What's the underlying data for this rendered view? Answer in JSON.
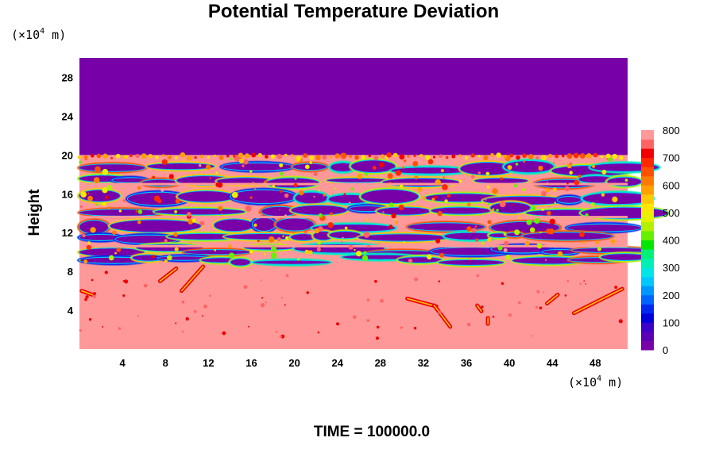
{
  "chart_data": {
    "type": "heatmap",
    "title": "Potential Temperature Deviation",
    "ylabel": "Height",
    "xlabel": "",
    "x_unit": {
      "prefix": "(×10",
      "exponent": "4",
      "suffix": " m)"
    },
    "y_unit": {
      "prefix": "(×10",
      "exponent": "4",
      "suffix": " m)"
    },
    "xlim": [
      0,
      51
    ],
    "ylim": [
      0,
      30
    ],
    "x_ticks": [
      4,
      8,
      12,
      16,
      20,
      24,
      28,
      32,
      36,
      40,
      44,
      48
    ],
    "x_tick_labels": [
      "4",
      "8",
      "12",
      "16",
      "20",
      "24",
      "28",
      "32",
      "36",
      "40",
      "44",
      "48"
    ],
    "y_ticks": [
      4,
      8,
      12,
      16,
      20,
      24,
      28
    ],
    "y_tick_labels": [
      "4",
      "8",
      "12",
      "16",
      "20",
      "24",
      "28"
    ],
    "colorbar": {
      "min": 0,
      "max": 800,
      "ticks": [
        0,
        100,
        200,
        300,
        400,
        500,
        600,
        700,
        800
      ],
      "tick_labels": [
        "0",
        "100",
        "200",
        "300",
        "400",
        "500",
        "600",
        "700",
        "800"
      ],
      "colors": [
        "#7800a8",
        "#5a00b4",
        "#3c00c8",
        "#0000dc",
        "#0028f0",
        "#0064ff",
        "#0096ff",
        "#00c8ff",
        "#00e6e6",
        "#00f0b4",
        "#00f078",
        "#00e600",
        "#64f000",
        "#b4f000",
        "#e6f000",
        "#ffe600",
        "#ffc800",
        "#ffa000",
        "#ff7800",
        "#ff5000",
        "#ff2800",
        "#f00000",
        "#ff6464",
        "#ff9898"
      ]
    },
    "regions": [
      {
        "y_range": [
          20,
          30
        ],
        "value": 0
      },
      {
        "y_range": [
          0,
          8.5
        ],
        "value": 800
      },
      {
        "y_range": [
          8.5,
          20
        ],
        "value": "mixed banded layers, 0–800"
      }
    ],
    "grid": false,
    "legend": "colorbar-right"
  },
  "footer": {
    "time_label": "TIME = 100000.0"
  }
}
